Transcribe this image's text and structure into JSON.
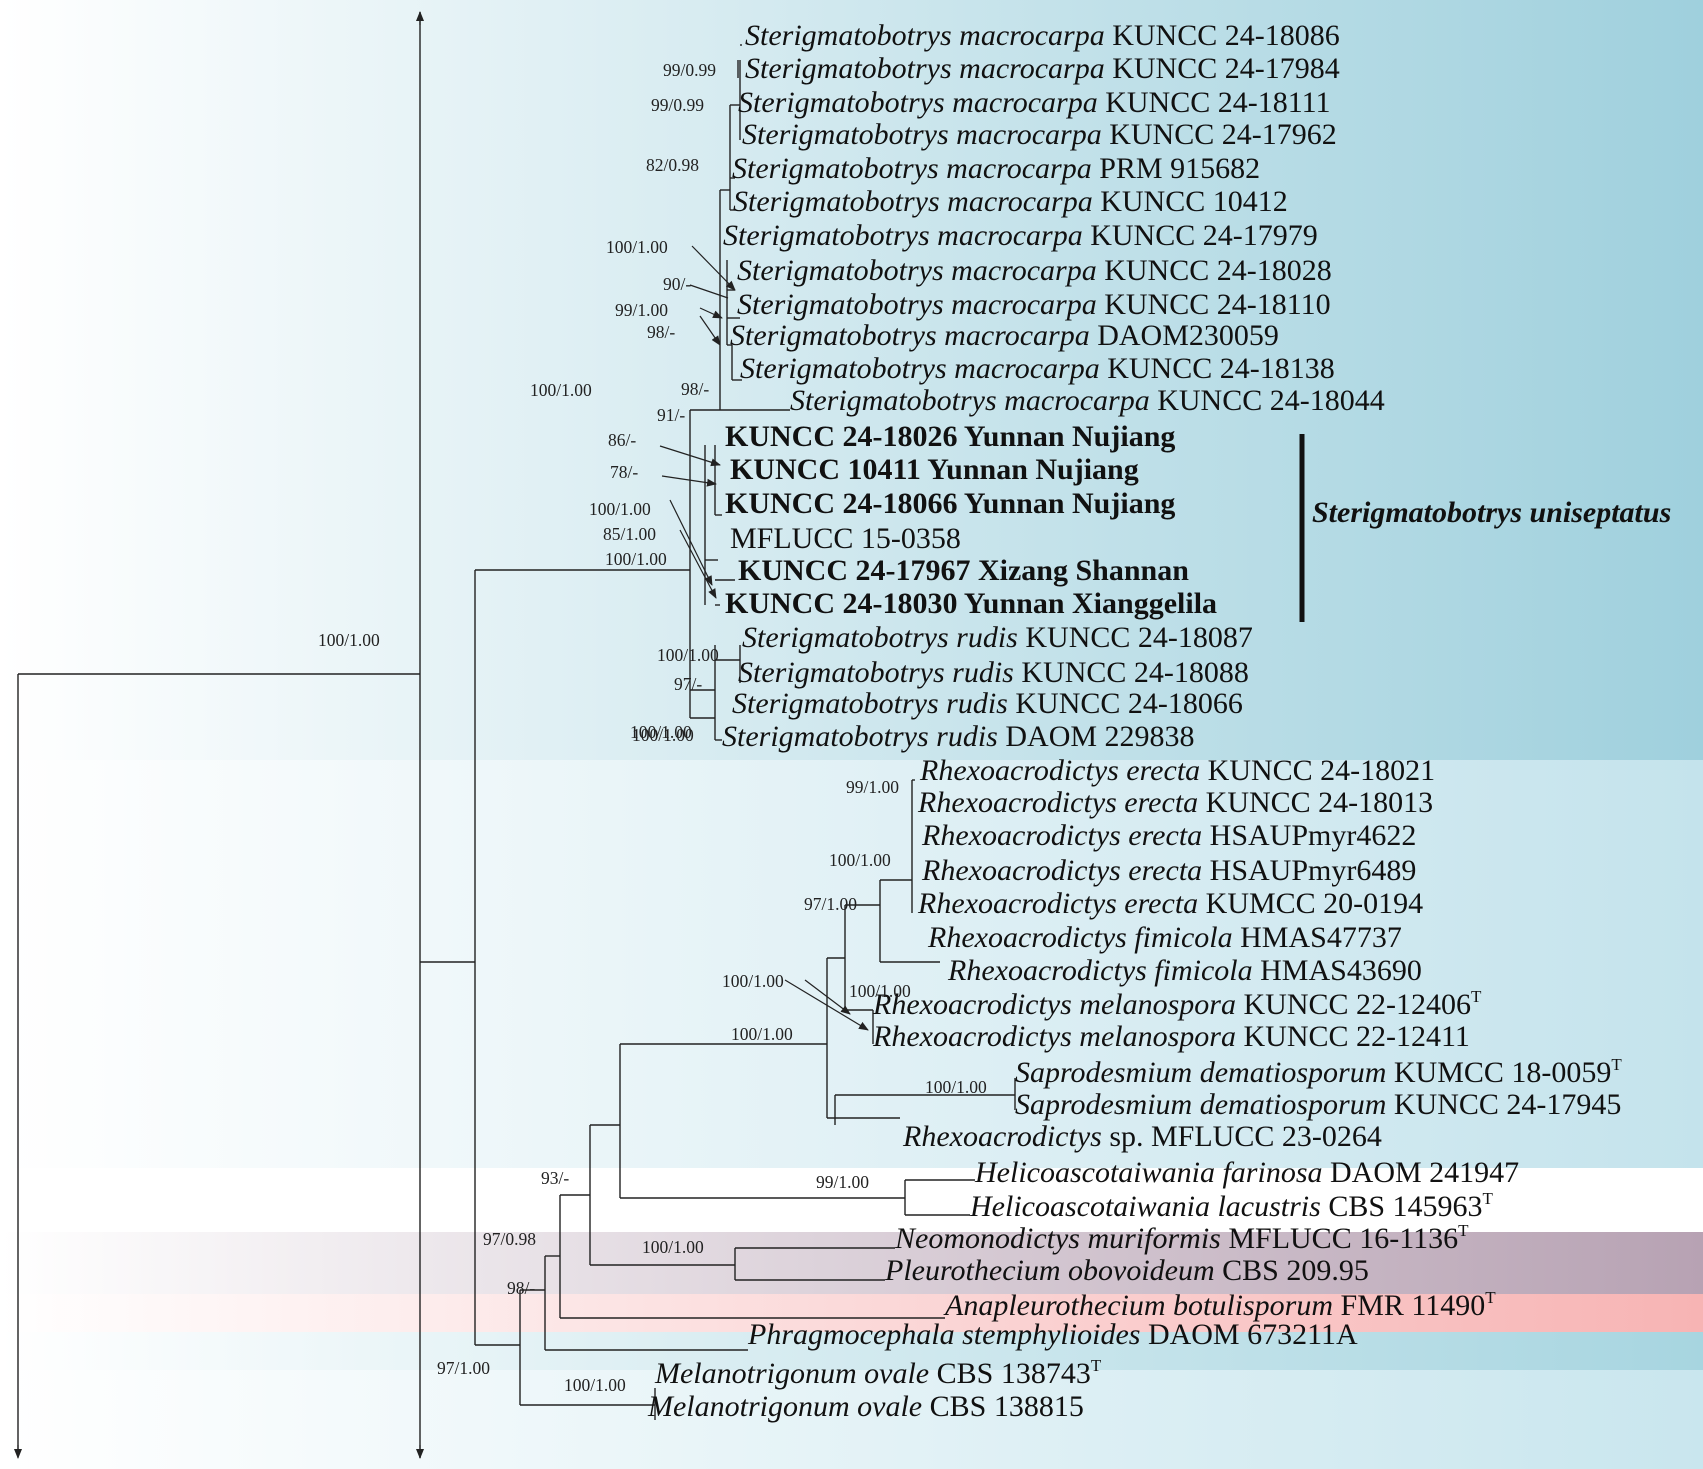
{
  "taxa": [
    {
      "genus": "Sterigmatobotrys macrocarpa",
      "strain": "KUNCC 24-18086"
    },
    {
      "genus": "Sterigmatobotrys macrocarpa",
      "strain": "KUNCC 24-17984"
    },
    {
      "genus": "Sterigmatobotrys macrocarpa",
      "strain": "KUNCC 24-18111"
    },
    {
      "genus": "Sterigmatobotrys macrocarpa",
      "strain": "KUNCC 24-17962"
    },
    {
      "genus": "Sterigmatobotrys macrocarpa",
      "strain": "PRM 915682"
    },
    {
      "genus": "Sterigmatobotrys macrocarpa",
      "strain": "KUNCC 10412"
    },
    {
      "genus": "Sterigmatobotrys macrocarpa",
      "strain": "KUNCC 24-17979"
    },
    {
      "genus": "Sterigmatobotrys macrocarpa",
      "strain": "KUNCC 24-18028"
    },
    {
      "genus": "Sterigmatobotrys macrocarpa",
      "strain": "KUNCC 24-18110"
    },
    {
      "genus": "Sterigmatobotrys macrocarpa",
      "strain": "DAOM230059"
    },
    {
      "genus": "Sterigmatobotrys macrocarpa",
      "strain": "KUNCC 24-18138"
    },
    {
      "genus": "Sterigmatobotrys macrocarpa",
      "strain": "KUNCC 24-18044"
    },
    {
      "genus": "",
      "strain": "KUNCC 24-18026 Yunnan Nujiang",
      "bold": true
    },
    {
      "genus": "",
      "strain": "KUNCC 10411 Yunnan Nujiang",
      "bold": true
    },
    {
      "genus": "",
      "strain": "KUNCC 24-18066 Yunnan Nujiang",
      "bold": true
    },
    {
      "genus": "",
      "strain": "MFLUCC 15-0358"
    },
    {
      "genus": "",
      "strain": "KUNCC 24-17967 Xizang Shannan",
      "bold": true
    },
    {
      "genus": "",
      "strain": "KUNCC 24-18030 Yunnan Xianggelila",
      "bold": true
    },
    {
      "genus": "Sterigmatobotrys rudis",
      "strain": "KUNCC 24-18087"
    },
    {
      "genus": "Sterigmatobotrys rudis",
      "strain": "KUNCC 24-18088"
    },
    {
      "genus": "Sterigmatobotrys rudis",
      "strain": "KUNCC 24-18066"
    },
    {
      "genus": "Sterigmatobotrys rudis",
      "strain": "DAOM 229838"
    },
    {
      "genus": "Rhexoacrodictys erecta",
      "strain": "KUNCC 24-18021"
    },
    {
      "genus": "Rhexoacrodictys erecta",
      "strain": "KUNCC 24-18013"
    },
    {
      "genus": "Rhexoacrodictys erecta",
      "strain": "HSAUPmyr4622"
    },
    {
      "genus": "Rhexoacrodictys erecta",
      "strain": "HSAUPmyr6489"
    },
    {
      "genus": "Rhexoacrodictys erecta",
      "strain": "KUMCC 20-0194"
    },
    {
      "genus": "Rhexoacrodictys fimicola",
      "strain": "HMAS47737"
    },
    {
      "genus": "Rhexoacrodictys fimicola",
      "strain": "HMAS43690"
    },
    {
      "genus": "Rhexoacrodictys melanospora",
      "strain": "KUNCC 22-12406",
      "sup": "T"
    },
    {
      "genus": "Rhexoacrodictys melanospora",
      "strain": "KUNCC 22-12411"
    },
    {
      "genus": "Saprodesmium dematiosporum",
      "strain": "KUMCC 18-0059",
      "sup": "T"
    },
    {
      "genus": "Saprodesmium dematiosporum",
      "strain": "KUNCC 24-17945"
    },
    {
      "genus": "Rhexoacrodictys",
      "strain": "sp. MFLUCC 23-0264"
    },
    {
      "genus": "Helicoascotaiwania farinosa",
      "strain": "DAOM 241947"
    },
    {
      "genus": "Helicoascotaiwania lacustris",
      "strain": "CBS 145963",
      "sup": "T"
    },
    {
      "genus": "Neomonodictys muriformis",
      "strain": "MFLUCC 16-1136",
      "sup": "T"
    },
    {
      "genus": "Pleurothecium obovoideum",
      "strain": "CBS 209.95"
    },
    {
      "genus": "Anapleurothecium botulisporum",
      "strain": "FMR 11490",
      "sup": "T"
    },
    {
      "genus": "Phragmocephala stemphylioides",
      "strain": "DAOM 673211A"
    },
    {
      "genus": "Melanotrigonum ovale",
      "strain": "CBS 138743",
      "sup": "T"
    },
    {
      "genus": "Melanotrigonum ovale",
      "strain": "CBS 138815"
    }
  ],
  "support_values": [
    "99/0.99",
    "99/0.99",
    "82/0.98",
    "100/1.00",
    "90/-",
    "99/1.00",
    "98/-",
    "100/1.00",
    "98/-",
    "91/-",
    "86/-",
    "78/-",
    "100/1.00",
    "85/1.00",
    "100/1.00",
    "100/1.00",
    "100/1.00",
    "97/-",
    "100/1.00",
    "99/1.00",
    "100/1.00",
    "97/1.00",
    "100/1.00",
    "100/1.00",
    "100/1.00",
    "100/1.00",
    "99/1.00",
    "93/-",
    "100/1.00",
    "97/0.98",
    "100/1.00",
    "98/-",
    "97/1.00",
    "100/1.00"
  ],
  "clade_label": "Sterigmatobotrys uniseptatus",
  "band_colors": {
    "top": "#9fd0dd",
    "middle": "#c4e3ec",
    "helicoascotaiwania": "#ffffff",
    "neomonodictys": "#b7a2b3",
    "anapleurothecium": "#f7b4b4",
    "phragmocephala": "#a7d5e0",
    "bottom": "#c9e6ee"
  }
}
